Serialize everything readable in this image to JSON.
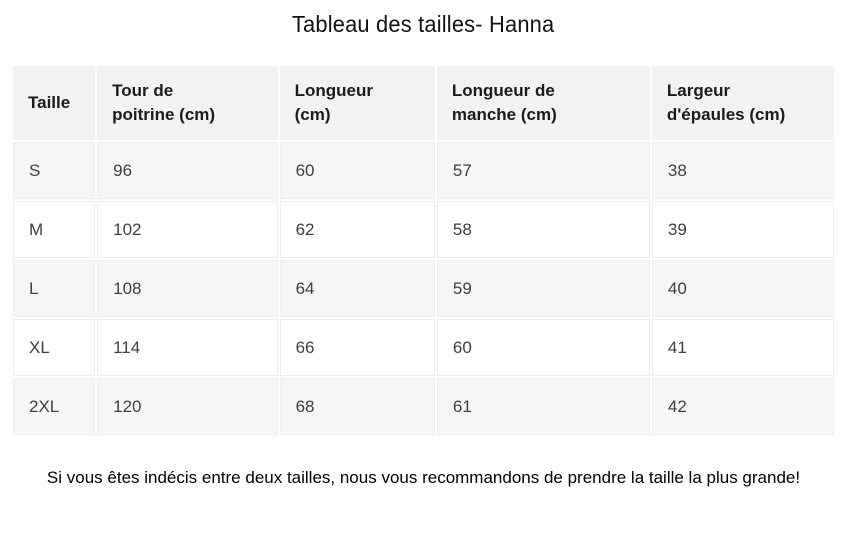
{
  "title": "Tableau des tailles- Hanna",
  "table": {
    "columns": [
      [
        "Taille"
      ],
      [
        "Tour de",
        "poitrine (cm)"
      ],
      [
        "Longueur",
        "(cm)"
      ],
      [
        "Longueur de",
        "manche (cm)"
      ],
      [
        "Largeur",
        "d'épaules (cm)"
      ]
    ],
    "rows": [
      [
        "S",
        "96",
        "60",
        "57",
        "38"
      ],
      [
        "M",
        "102",
        "62",
        "58",
        "39"
      ],
      [
        "L",
        "108",
        "64",
        "59",
        "40"
      ],
      [
        "XL",
        "114",
        "66",
        "60",
        "41"
      ],
      [
        "2XL",
        "120",
        "68",
        "61",
        "42"
      ]
    ]
  },
  "note": {
    "text": "Si vous êtes indécis entre deux tailles, nous vous recommandons de prendre la taille la plus grande!"
  },
  "colors": {
    "header_bg": "#f2f2f2",
    "row_alt_bg": "#f6f6f6",
    "cell_border": "#ededed",
    "heading_text": "#1b1b1b",
    "body_text": "#3f3f3f",
    "title_text": "#111111",
    "note_text": "#000000",
    "page_bg": "#ffffff"
  }
}
